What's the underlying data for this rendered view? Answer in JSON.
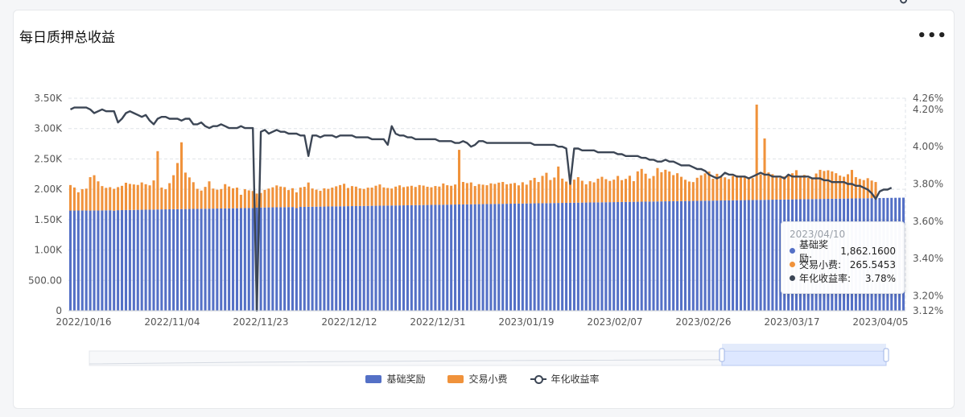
{
  "card": {
    "title": "每日质押总收益",
    "menu_label": "•••"
  },
  "colors": {
    "base": "#5470c6",
    "fee": "#f0923b",
    "apr": "#3c4655",
    "grid": "#dfe3e8"
  },
  "chart_data": {
    "type": "bar",
    "stacked": true,
    "x_tick_labels": [
      "2022/10/16",
      "2022/11/04",
      "2022/11/23",
      "2022/12/12",
      "2022/12/31",
      "2023/01/19",
      "2023/02/07",
      "2023/02/26",
      "2023/03/17",
      "2023/04/05"
    ],
    "y_left_ticks": [
      "0",
      "500.00",
      "1.00K",
      "1.50K",
      "2.00K",
      "2.50K",
      "3.00K",
      "3.50K"
    ],
    "y_right_ticks": [
      "3.12%",
      "3.20%",
      "3.40%",
      "3.60%",
      "3.80%",
      "4.00%",
      "4.20%",
      "4.26%"
    ],
    "ylim_left": [
      0,
      3500
    ],
    "ylim_right": [
      3.12,
      4.26
    ],
    "x_range": [
      "2022/10/16",
      "2023/04/10"
    ],
    "series": [
      {
        "name": "基础奖励",
        "type": "bar",
        "axis": "left",
        "values": [
          1650,
          1650,
          1651,
          1652,
          1651,
          1650,
          1652,
          1651,
          1653,
          1654,
          1655,
          1648,
          1656,
          1657,
          1658,
          1659,
          1660,
          1662,
          1663,
          1664,
          1665,
          1666,
          1668,
          1669,
          1670,
          1671,
          1672,
          1673,
          1674,
          1675,
          1676,
          1677,
          1678,
          1679,
          1680,
          1681,
          1682,
          1683,
          1684,
          1685,
          1686,
          1687,
          1688,
          1690,
          1691,
          1692,
          1692,
          1700,
          1700,
          1701,
          1702,
          1703,
          1704,
          1705,
          1706,
          1707,
          1708,
          1690,
          1710,
          1711,
          1712,
          1713,
          1714,
          1715,
          1716,
          1717,
          1718,
          1719,
          1720,
          1721,
          1722,
          1723,
          1724,
          1725,
          1726,
          1727,
          1728,
          1729,
          1730,
          1731,
          1732,
          1733,
          1734,
          1735,
          1736,
          1737,
          1738,
          1739,
          1740,
          1741,
          1742,
          1743,
          1744,
          1745,
          1746,
          1747,
          1748,
          1749,
          1750,
          1751,
          1752,
          1753,
          1754,
          1755,
          1756,
          1757,
          1758,
          1759,
          1760,
          1761,
          1762,
          1763,
          1764,
          1765,
          1766,
          1767,
          1768,
          1769,
          1770,
          1771,
          1772,
          1773,
          1774,
          1775,
          1776,
          1777,
          1778,
          1779,
          1780,
          1781,
          1782,
          1783,
          1784,
          1785,
          1786,
          1787,
          1788,
          1789,
          1790,
          1791,
          1792,
          1793,
          1794,
          1795,
          1796,
          1797,
          1798,
          1799,
          1800,
          1801,
          1802,
          1803,
          1804,
          1805,
          1806,
          1807,
          1808,
          1809,
          1810,
          1811,
          1812,
          1813,
          1814,
          1815,
          1816,
          1817,
          1818,
          1819,
          1820,
          1821,
          1822,
          1823,
          1824,
          1825,
          1826,
          1827,
          1828,
          1829,
          1830,
          1831,
          1832,
          1833,
          1834,
          1835,
          1836,
          1837,
          1838,
          1839,
          1840,
          1841,
          1842,
          1843,
          1844,
          1845,
          1846,
          1847,
          1848,
          1849,
          1850,
          1851,
          1852,
          1853,
          1854,
          1855,
          1856,
          1857,
          1858,
          1859,
          1860,
          1861,
          1862
        ]
      },
      {
        "name": "交易小费",
        "type": "bar",
        "axis": "left",
        "values": [
          420,
          380,
          300,
          350,
          360,
          550,
          580,
          480,
          400,
          370,
          380,
          360,
          380,
          400,
          450,
          430,
          420,
          410,
          450,
          420,
          400,
          480,
          960,
          360,
          330,
          430,
          560,
          760,
          1100,
          600,
          520,
          440,
          330,
          300,
          360,
          450,
          330,
          310,
          320,
          400,
          360,
          330,
          340,
          220,
          310,
          290,
          280,
          230,
          240,
          290,
          310,
          330,
          360,
          340,
          330,
          280,
          310,
          260,
          320,
          330,
          400,
          300,
          280,
          260,
          300,
          290,
          310,
          330,
          350,
          370,
          300,
          330,
          320,
          290,
          280,
          300,
          300,
          330,
          350,
          300,
          290,
          280,
          310,
          330,
          300,
          310,
          320,
          300,
          330,
          320,
          300,
          290,
          310,
          300,
          350,
          320,
          310,
          330,
          900,
          370,
          350,
          360,
          300,
          330,
          320,
          310,
          340,
          330,
          350,
          360,
          320,
          330,
          340,
          300,
          350,
          310,
          380,
          420,
          350,
          450,
          500,
          380,
          420,
          600,
          400,
          350,
          370,
          380,
          420,
          360,
          300,
          350,
          330,
          390,
          420,
          380,
          350,
          370,
          430,
          360,
          380,
          430,
          340,
          500,
          540,
          460,
          380,
          420,
          550,
          480,
          520,
          490,
          430,
          460,
          400,
          350,
          320,
          310,
          380,
          420,
          450,
          480,
          360,
          440,
          400,
          380,
          350,
          400,
          410,
          390,
          380,
          370,
          360,
          1570,
          420,
          1010,
          450,
          420,
          380,
          360,
          380,
          400,
          430,
          480,
          370,
          400,
          350,
          330,
          420,
          480,
          460,
          470,
          450,
          420,
          380,
          360,
          400,
          470,
          350,
          320,
          300,
          330,
          290,
          265
        ]
      },
      {
        "name": "年化收益率",
        "type": "line",
        "axis": "right",
        "values": [
          4.2,
          4.21,
          4.21,
          4.21,
          4.21,
          4.2,
          4.18,
          4.19,
          4.2,
          4.19,
          4.19,
          4.19,
          4.13,
          4.15,
          4.18,
          4.19,
          4.18,
          4.17,
          4.16,
          4.17,
          4.14,
          4.12,
          4.15,
          4.16,
          4.16,
          4.15,
          4.15,
          4.15,
          4.14,
          4.15,
          4.15,
          4.12,
          4.12,
          4.13,
          4.11,
          4.1,
          4.11,
          4.11,
          4.12,
          4.11,
          4.1,
          4.1,
          4.1,
          4.11,
          4.1,
          4.1,
          4.1,
          3.12,
          4.08,
          4.09,
          4.07,
          4.08,
          4.09,
          4.08,
          4.08,
          4.07,
          4.07,
          4.07,
          4.06,
          4.06,
          3.95,
          4.06,
          4.06,
          4.05,
          4.06,
          4.06,
          4.06,
          4.05,
          4.06,
          4.06,
          4.06,
          4.06,
          4.05,
          4.05,
          4.05,
          4.05,
          4.04,
          4.04,
          4.04,
          4.04,
          4.01,
          4.11,
          4.07,
          4.06,
          4.06,
          4.05,
          4.05,
          4.04,
          4.04,
          4.04,
          4.04,
          4.04,
          4.04,
          4.03,
          4.03,
          4.03,
          4.03,
          4.02,
          4.02,
          4.03,
          4.02,
          4.0,
          4.01,
          4.03,
          4.03,
          4.02,
          4.02,
          4.02,
          4.02,
          4.02,
          4.02,
          4.02,
          4.02,
          4.02,
          4.02,
          4.02,
          4.02,
          4.01,
          4.01,
          4.01,
          4.01,
          4.01,
          4.01,
          4.0,
          4.0,
          3.99,
          3.8,
          3.99,
          3.99,
          3.98,
          3.98,
          3.98,
          3.98,
          3.97,
          3.97,
          3.97,
          3.97,
          3.97,
          3.96,
          3.96,
          3.95,
          3.95,
          3.95,
          3.95,
          3.94,
          3.94,
          3.93,
          3.93,
          3.92,
          3.92,
          3.93,
          3.92,
          3.92,
          3.91,
          3.9,
          3.9,
          3.9,
          3.89,
          3.88,
          3.88,
          3.87,
          3.85,
          3.84,
          3.83,
          3.84,
          3.86,
          3.85,
          3.85,
          3.84,
          3.84,
          3.84,
          3.83,
          3.84,
          3.85,
          3.86,
          3.85,
          3.85,
          3.84,
          3.84,
          3.84,
          3.83,
          3.85,
          3.84,
          3.84,
          3.84,
          3.84,
          3.84,
          3.83,
          3.83,
          3.83,
          3.82,
          3.82,
          3.81,
          3.81,
          3.81,
          3.81,
          3.8,
          3.8,
          3.79,
          3.79,
          3.78,
          3.77,
          3.75,
          3.72,
          3.76,
          3.77,
          3.77,
          3.78
        ]
      }
    ]
  },
  "tooltip": {
    "date": "2023/04/10",
    "rows": [
      {
        "label": "基础奖励:",
        "value": "1,862.1600"
      },
      {
        "label": "交易小费:",
        "value": "265.5453"
      },
      {
        "label": "年化收益率:",
        "value": "3.78%"
      }
    ]
  },
  "legend": [
    "基础奖励",
    "交易小费",
    "年化收益率"
  ],
  "icons": {
    "menu": "more-dots-icon",
    "line_marker": "circle-line-icon"
  }
}
